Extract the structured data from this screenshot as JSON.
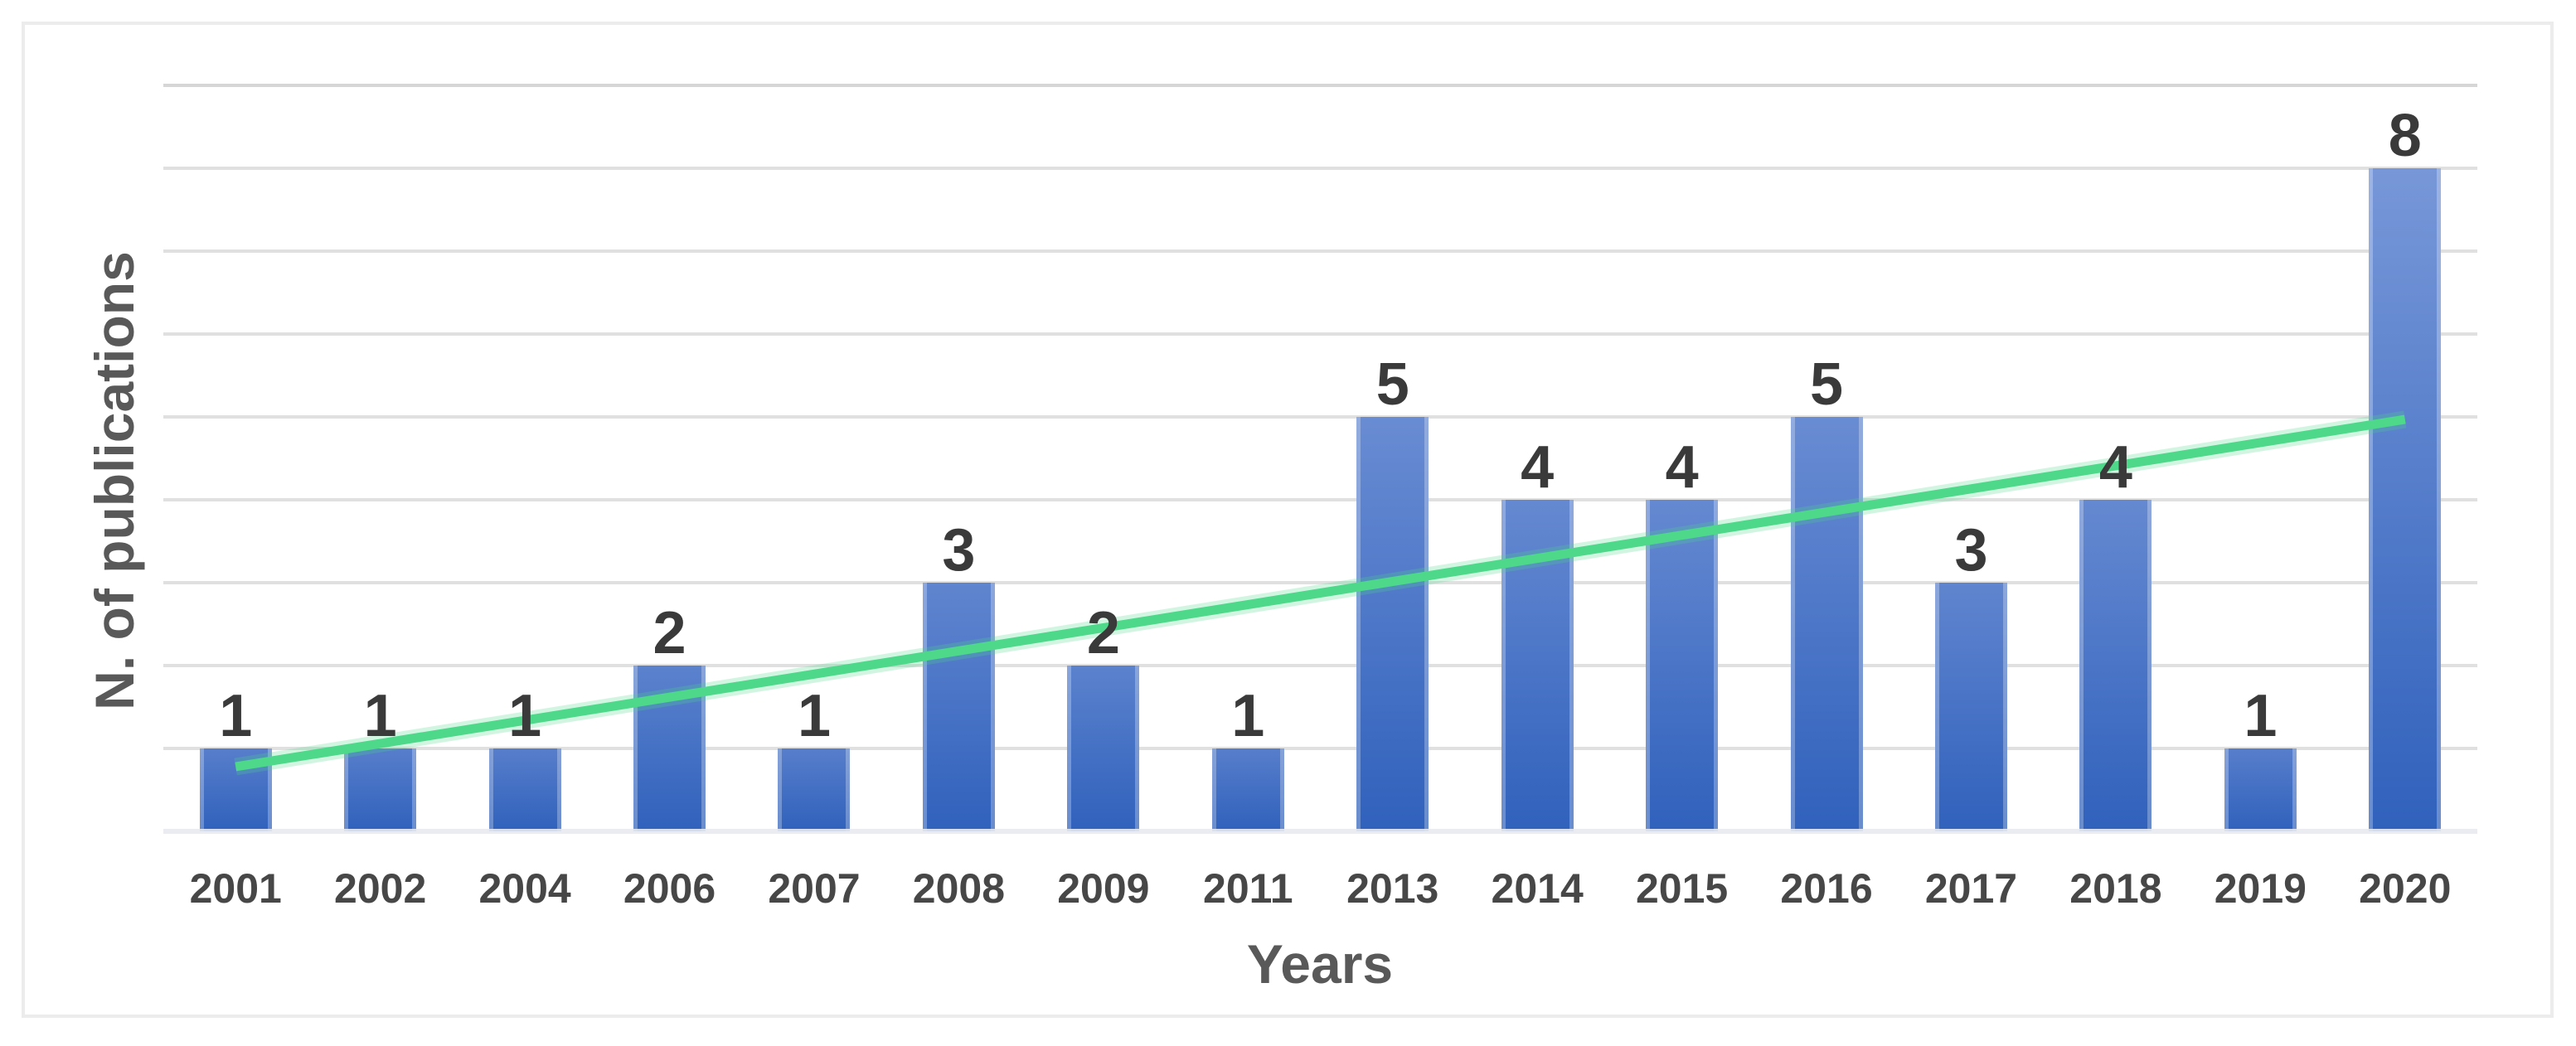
{
  "figure": {
    "background": "#ffffff",
    "border_color": "#ececec"
  },
  "chart_data": {
    "type": "bar",
    "title": "",
    "categories": [
      "2001",
      "2002",
      "2004",
      "2006",
      "2007",
      "2008",
      "2009",
      "2011",
      "2013",
      "2014",
      "2015",
      "2016",
      "2017",
      "2018",
      "2019",
      "2020"
    ],
    "values": [
      1,
      1,
      1,
      2,
      1,
      3,
      2,
      1,
      5,
      4,
      4,
      5,
      3,
      4,
      1,
      8
    ],
    "data_labels": [
      "1",
      "1",
      "1",
      "2",
      "1",
      "3",
      "2",
      "1",
      "5",
      "4",
      "4",
      "5",
      "3",
      "4",
      "1",
      "8"
    ],
    "xlabel": "Years",
    "ylabel": "N. of publications",
    "ylim": [
      0,
      9
    ],
    "ytick_step": 1,
    "grid": true,
    "legend": "none",
    "show_data_labels": true,
    "colors": {
      "bar_gradient_light": "#7c9ada",
      "bar_gradient_dark": "#3061bc",
      "gridline": "#e0e0e0",
      "gridline_top": "#d6d6d6",
      "data_label": "#3a3a3a",
      "tick_label": "#474747",
      "axis_title": "#595959"
    },
    "trendline": {
      "type": "linear",
      "color": "#4dd88a",
      "start_value": 0.78,
      "end_value": 4.97
    }
  }
}
